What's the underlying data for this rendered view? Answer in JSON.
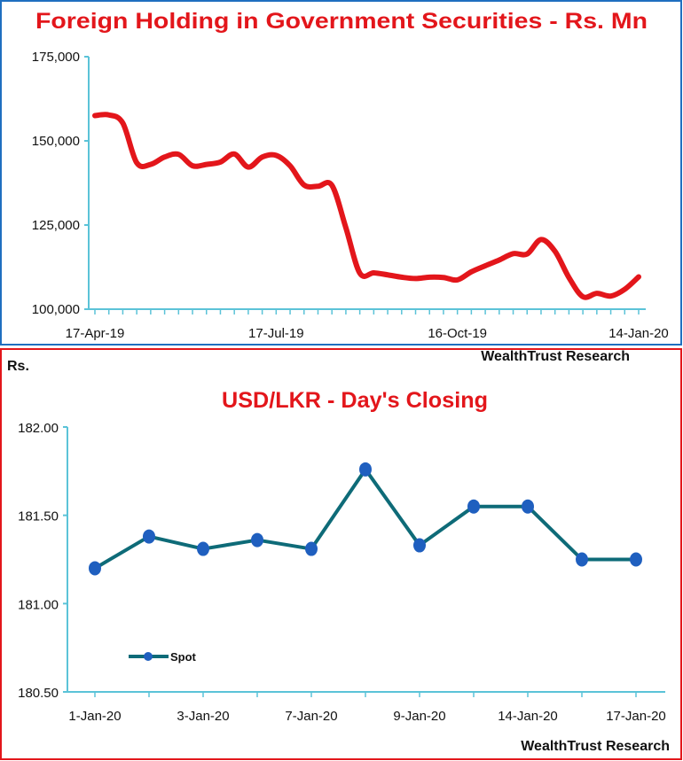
{
  "chart_data": [
    {
      "type": "line",
      "title": "Foreign Holding in Government Securities - Rs. Mn",
      "source": "WealthTrust Research",
      "xlabel": "",
      "ylabel": "",
      "x_tick_labels": [
        {
          "index": 0,
          "label": "17-Apr-19"
        },
        {
          "index": 13,
          "label": "17-Jul-19"
        },
        {
          "index": 26,
          "label": "16-Oct-19"
        },
        {
          "index": 39,
          "label": "14-Jan-20"
        }
      ],
      "y_ticks": [
        "100,000",
        "125,000",
        "150,000",
        "175,000"
      ],
      "ylim": [
        100000,
        175000
      ],
      "grid": false,
      "series": [
        {
          "color": "#e3161b",
          "values": [
            157500,
            157700,
            155300,
            143500,
            143000,
            145200,
            146000,
            142600,
            143000,
            143700,
            146100,
            142200,
            145200,
            145700,
            142600,
            136900,
            136500,
            136800,
            124200,
            110700,
            110800,
            110200,
            109500,
            109100,
            109500,
            109400,
            108700,
            111100,
            112900,
            114600,
            116500,
            116400,
            120700,
            117200,
            109400,
            103700,
            104700,
            103900,
            105900,
            109600
          ]
        }
      ]
    },
    {
      "type": "line",
      "title": "USD/LKR - Day's Closing",
      "ylabel": "Rs.",
      "source": "WealthTrust Research",
      "categories": [
        "1-Jan-20",
        "",
        "3-Jan-20",
        "",
        "7-Jan-20",
        "",
        "9-Jan-20",
        "",
        "14-Jan-20",
        "",
        "17-Jan-20"
      ],
      "y_ticks": [
        "180.50",
        "181.00",
        "181.50",
        "182.00"
      ],
      "ylim": [
        180.5,
        182.0
      ],
      "grid": false,
      "legend": "bottom-left",
      "series": [
        {
          "name": "Spot",
          "line_color": "#0e6b78",
          "marker_color": "#1f5fbf",
          "values": [
            181.2,
            181.38,
            181.31,
            181.36,
            181.31,
            181.76,
            181.33,
            181.55,
            181.55,
            181.25,
            181.25
          ]
        }
      ]
    }
  ],
  "colors": {
    "top_border": "#1f6fc0",
    "bottom_border": "#e3161b",
    "axis": "#5bc3d8",
    "title": "#e3161b"
  }
}
